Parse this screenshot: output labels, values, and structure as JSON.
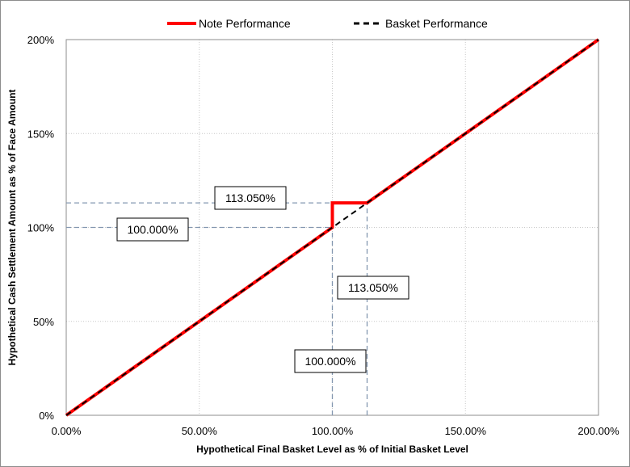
{
  "chart_data": {
    "type": "line",
    "title": "",
    "xlabel": "Hypothetical Final Basket Level as % of Initial Basket Level",
    "ylabel": "Hypothetical Cash Settlement Amount as % of Face Amount",
    "xlim": [
      0,
      200
    ],
    "ylim": [
      0,
      200
    ],
    "xticks": [
      0,
      50,
      100,
      150,
      200
    ],
    "yticks": [
      0,
      50,
      100,
      150,
      200
    ],
    "xtick_labels": [
      "0.00%",
      "50.00%",
      "100.00%",
      "150.00%",
      "200.00%"
    ],
    "ytick_labels": [
      "0%",
      "50%",
      "100%",
      "150%",
      "200%"
    ],
    "grid": true,
    "legend_position": "top-center",
    "series": [
      {
        "name": "Note Performance",
        "color": "#ff0000",
        "style": "solid",
        "x": [
          0,
          100,
          100,
          113.05,
          200
        ],
        "y": [
          0,
          100,
          113.05,
          113.05,
          200
        ]
      },
      {
        "name": "Basket Performance",
        "color": "#000000",
        "style": "dashed",
        "x": [
          0,
          200
        ],
        "y": [
          0,
          200
        ]
      }
    ],
    "reference_lines": [
      {
        "orientation": "horizontal",
        "value": 113.05,
        "from": 0,
        "to": 113.05
      },
      {
        "orientation": "horizontal",
        "value": 100,
        "from": 0,
        "to": 100
      },
      {
        "orientation": "vertical",
        "value": 100,
        "from": 0,
        "to": 100
      },
      {
        "orientation": "vertical",
        "value": 113.05,
        "from": 0,
        "to": 113.05
      }
    ],
    "annotations": [
      {
        "text": "113.050%",
        "axis": "y",
        "value": 113.05
      },
      {
        "text": "100.000%",
        "axis": "y",
        "value": 100
      },
      {
        "text": "113.050%",
        "axis": "x",
        "value": 113.05
      },
      {
        "text": "100.000%",
        "axis": "x",
        "value": 100
      }
    ]
  }
}
